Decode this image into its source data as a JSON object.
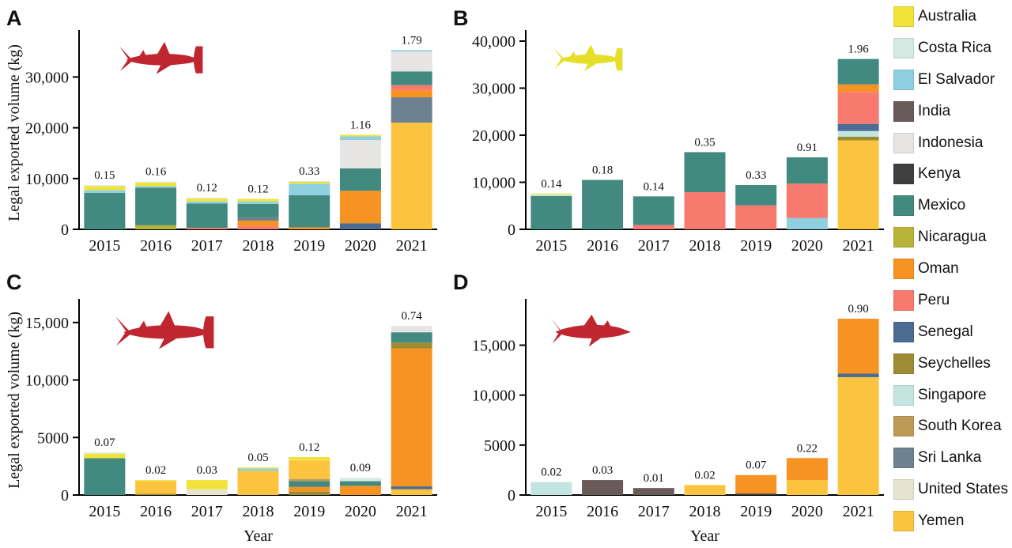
{
  "figure": {
    "y_axis_label": "Legal exported volume (kg)",
    "x_axis_label": "Year",
    "background": "#ffffff"
  },
  "colors": {
    "Australia": "#f2e33b",
    "Costa Rica": "#d6eae3",
    "El Salvador": "#8fd0e0",
    "India": "#6a5b5b",
    "Indonesia": "#e6e5e3",
    "Kenya": "#3f3f3f",
    "Mexico": "#42897f",
    "Nicaragua": "#b8b33a",
    "Oman": "#f69322",
    "Peru": "#f8796e",
    "Senegal": "#4b6b92",
    "Seychelles": "#9d8c33",
    "Singapore": "#c3e5e1",
    "South Korea": "#bd9b57",
    "Sri Lanka": "#6e8191",
    "United States": "#e8e2d1",
    "Yemen": "#fcc43e"
  },
  "legend": [
    "Australia",
    "Costa Rica",
    "El Salvador",
    "India",
    "Indonesia",
    "Kenya",
    "Mexico",
    "Nicaragua",
    "Oman",
    "Peru",
    "Senegal",
    "Seychelles",
    "Singapore",
    "South Korea",
    "Sri Lanka",
    "United States",
    "Yemen"
  ],
  "sharks": {
    "red": "#c02630",
    "yellow": "#e5df2b"
  },
  "chart_data": [
    {
      "type": "bar",
      "stacked": true,
      "panel": "A",
      "shark": {
        "kind": "hammerhead",
        "color": "red"
      },
      "categories": [
        "2015",
        "2016",
        "2017",
        "2018",
        "2019",
        "2020",
        "2021"
      ],
      "bar_labels": [
        "0.15",
        "0.16",
        "0.12",
        "0.12",
        "0.33",
        "1.16",
        "1.79"
      ],
      "ylim": [
        0,
        38000
      ],
      "yticks": [
        0,
        10000,
        20000,
        30000
      ],
      "ytick_labels": [
        "0",
        "10,000",
        "20,000",
        "30,000"
      ],
      "show_ylabel": true,
      "show_xlabel": false,
      "bars": [
        {
          "year": "2015",
          "total_label": "0.15",
          "segments": [
            {
              "country": "Mexico",
              "kg": 7200
            },
            {
              "country": "El Salvador",
              "kg": 500
            },
            {
              "country": "Australia",
              "kg": 800
            },
            {
              "country": "Costa Rica",
              "kg": 200
            }
          ]
        },
        {
          "year": "2016",
          "total_label": "0.16",
          "segments": [
            {
              "country": "Nicaragua",
              "kg": 800
            },
            {
              "country": "Mexico",
              "kg": 7400
            },
            {
              "country": "El Salvador",
              "kg": 300
            },
            {
              "country": "Australia",
              "kg": 700
            },
            {
              "country": "Costa Rica",
              "kg": 200
            }
          ]
        },
        {
          "year": "2017",
          "total_label": "0.12",
          "segments": [
            {
              "country": "Peru",
              "kg": 300
            },
            {
              "country": "Mexico",
              "kg": 4800
            },
            {
              "country": "El Salvador",
              "kg": 400
            },
            {
              "country": "Australia",
              "kg": 600
            },
            {
              "country": "Costa Rica",
              "kg": 100
            }
          ]
        },
        {
          "year": "2018",
          "total_label": "0.12",
          "segments": [
            {
              "country": "Peru",
              "kg": 600
            },
            {
              "country": "Oman",
              "kg": 1100
            },
            {
              "country": "Sri Lanka",
              "kg": 700
            },
            {
              "country": "Mexico",
              "kg": 2600
            },
            {
              "country": "El Salvador",
              "kg": 500
            },
            {
              "country": "Australia",
              "kg": 500
            }
          ]
        },
        {
          "year": "2019",
          "total_label": "0.33",
          "segments": [
            {
              "country": "Oman",
              "kg": 400
            },
            {
              "country": "Mexico",
              "kg": 6300
            },
            {
              "country": "El Salvador",
              "kg": 2300
            },
            {
              "country": "Australia",
              "kg": 400
            },
            {
              "country": "Costa Rica",
              "kg": 100
            }
          ]
        },
        {
          "year": "2020",
          "total_label": "1.16",
          "segments": [
            {
              "country": "Senegal",
              "kg": 1200
            },
            {
              "country": "Oman",
              "kg": 6400
            },
            {
              "country": "Mexico",
              "kg": 4400
            },
            {
              "country": "Indonesia",
              "kg": 5600
            },
            {
              "country": "El Salvador",
              "kg": 700
            },
            {
              "country": "Australia",
              "kg": 300
            }
          ]
        },
        {
          "year": "2021",
          "total_label": "1.79",
          "segments": [
            {
              "country": "Yemen",
              "kg": 21000
            },
            {
              "country": "Sri Lanka",
              "kg": 5000
            },
            {
              "country": "Oman",
              "kg": 1400
            },
            {
              "country": "Peru",
              "kg": 1000
            },
            {
              "country": "Mexico",
              "kg": 2700
            },
            {
              "country": "Indonesia",
              "kg": 3900
            },
            {
              "country": "El Salvador",
              "kg": 300
            }
          ]
        }
      ]
    },
    {
      "type": "bar",
      "stacked": true,
      "panel": "B",
      "shark": {
        "kind": "hammerhead",
        "color": "yellow"
      },
      "categories": [
        "2015",
        "2016",
        "2017",
        "2018",
        "2019",
        "2020",
        "2021"
      ],
      "bar_labels": [
        "0.14",
        "0.18",
        "0.14",
        "0.35",
        "0.33",
        "0.91",
        "1.96"
      ],
      "ylim": [
        0,
        41000
      ],
      "yticks": [
        0,
        10000,
        20000,
        30000,
        40000
      ],
      "ytick_labels": [
        "0",
        "10,000",
        "20,000",
        "30,000",
        "40,000"
      ],
      "show_ylabel": false,
      "show_xlabel": false,
      "bars": [
        {
          "year": "2015",
          "total_label": "0.14",
          "segments": [
            {
              "country": "Mexico",
              "kg": 7100
            },
            {
              "country": "Costa Rica",
              "kg": 300
            },
            {
              "country": "Australia",
              "kg": 200
            }
          ]
        },
        {
          "year": "2016",
          "total_label": "0.18",
          "segments": [
            {
              "country": "Mexico",
              "kg": 10500
            }
          ]
        },
        {
          "year": "2017",
          "total_label": "0.14",
          "segments": [
            {
              "country": "Peru",
              "kg": 900
            },
            {
              "country": "Mexico",
              "kg": 6100
            }
          ]
        },
        {
          "year": "2018",
          "total_label": "0.35",
          "segments": [
            {
              "country": "Peru",
              "kg": 7900
            },
            {
              "country": "Mexico",
              "kg": 8500
            }
          ]
        },
        {
          "year": "2019",
          "total_label": "0.33",
          "segments": [
            {
              "country": "Peru",
              "kg": 5100
            },
            {
              "country": "Mexico",
              "kg": 4300
            }
          ]
        },
        {
          "year": "2020",
          "total_label": "0.91",
          "segments": [
            {
              "country": "El Salvador",
              "kg": 2400
            },
            {
              "country": "Peru",
              "kg": 7300
            },
            {
              "country": "Mexico",
              "kg": 5600
            }
          ]
        },
        {
          "year": "2021",
          "total_label": "1.96",
          "segments": [
            {
              "country": "Yemen",
              "kg": 18900
            },
            {
              "country": "Seychelles",
              "kg": 800
            },
            {
              "country": "Singapore",
              "kg": 1200
            },
            {
              "country": "Senegal",
              "kg": 1500
            },
            {
              "country": "Peru",
              "kg": 6800
            },
            {
              "country": "Oman",
              "kg": 1600
            },
            {
              "country": "Mexico",
              "kg": 5400
            }
          ]
        }
      ]
    },
    {
      "type": "bar",
      "stacked": true,
      "panel": "C",
      "shark": {
        "kind": "hammerhead",
        "color": "red"
      },
      "categories": [
        "2015",
        "2016",
        "2017",
        "2018",
        "2019",
        "2020",
        "2021"
      ],
      "bar_labels": [
        "0.07",
        "0.02",
        "0.03",
        "0.05",
        "0.12",
        "0.09",
        "0.74"
      ],
      "ylim": [
        0,
        16500
      ],
      "yticks": [
        0,
        5000,
        10000,
        15000
      ],
      "ytick_labels": [
        "0",
        "5000",
        "10,000",
        "15,000"
      ],
      "show_ylabel": true,
      "show_xlabel": true,
      "bars": [
        {
          "year": "2015",
          "total_label": "0.07",
          "segments": [
            {
              "country": "Mexico",
              "kg": 3200
            },
            {
              "country": "Australia",
              "kg": 400
            },
            {
              "country": "Costa Rica",
              "kg": 100
            }
          ]
        },
        {
          "year": "2016",
          "total_label": "0.02",
          "segments": [
            {
              "country": "Seychelles",
              "kg": 100
            },
            {
              "country": "Yemen",
              "kg": 1100
            },
            {
              "country": "Australia",
              "kg": 100
            }
          ]
        },
        {
          "year": "2017",
          "total_label": "0.03",
          "segments": [
            {
              "country": "United States",
              "kg": 500
            },
            {
              "country": "Australia",
              "kg": 800
            }
          ]
        },
        {
          "year": "2018",
          "total_label": "0.05",
          "segments": [
            {
              "country": "Yemen",
              "kg": 2100
            },
            {
              "country": "El Salvador",
              "kg": 200
            },
            {
              "country": "Australia",
              "kg": 100
            }
          ]
        },
        {
          "year": "2019",
          "total_label": "0.12",
          "segments": [
            {
              "country": "Seychelles",
              "kg": 300
            },
            {
              "country": "Oman",
              "kg": 400
            },
            {
              "country": "Mexico",
              "kg": 500
            },
            {
              "country": "South Korea",
              "kg": 200
            },
            {
              "country": "Yemen",
              "kg": 1600
            },
            {
              "country": "Australia",
              "kg": 300
            }
          ]
        },
        {
          "year": "2020",
          "total_label": "0.09",
          "segments": [
            {
              "country": "Oman",
              "kg": 800
            },
            {
              "country": "Mexico",
              "kg": 400
            },
            {
              "country": "Costa Rica",
              "kg": 300
            }
          ]
        },
        {
          "year": "2021",
          "total_label": "0.74",
          "segments": [
            {
              "country": "Yemen",
              "kg": 500
            },
            {
              "country": "Senegal",
              "kg": 250
            },
            {
              "country": "Oman",
              "kg": 12000
            },
            {
              "country": "Seychelles",
              "kg": 500
            },
            {
              "country": "Mexico",
              "kg": 900
            },
            {
              "country": "Indonesia",
              "kg": 550
            }
          ]
        }
      ]
    },
    {
      "type": "bar",
      "stacked": true,
      "panel": "D",
      "shark": {
        "kind": "shark",
        "color": "red"
      },
      "categories": [
        "2015",
        "2016",
        "2017",
        "2018",
        "2019",
        "2020",
        "2021"
      ],
      "bar_labels": [
        "0.02",
        "0.03",
        "0.01",
        "0.02",
        "0.07",
        "0.22",
        "0.90"
      ],
      "ylim": [
        0,
        19000
      ],
      "yticks": [
        0,
        5000,
        10000,
        15000
      ],
      "ytick_labels": [
        "0",
        "5000",
        "10,000",
        "15,000"
      ],
      "show_ylabel": false,
      "show_xlabel": true,
      "bars": [
        {
          "year": "2015",
          "total_label": "0.02",
          "segments": [
            {
              "country": "Singapore",
              "kg": 1300
            }
          ]
        },
        {
          "year": "2016",
          "total_label": "0.03",
          "segments": [
            {
              "country": "India",
              "kg": 1500
            }
          ]
        },
        {
          "year": "2017",
          "total_label": "0.01",
          "segments": [
            {
              "country": "India",
              "kg": 700
            }
          ]
        },
        {
          "year": "2018",
          "total_label": "0.02",
          "segments": [
            {
              "country": "Yemen",
              "kg": 1000
            }
          ]
        },
        {
          "year": "2019",
          "total_label": "0.07",
          "segments": [
            {
              "country": "Kenya",
              "kg": 150
            },
            {
              "country": "Oman",
              "kg": 1850
            }
          ]
        },
        {
          "year": "2020",
          "total_label": "0.22",
          "segments": [
            {
              "country": "Yemen",
              "kg": 1500
            },
            {
              "country": "Oman",
              "kg": 2200
            }
          ]
        },
        {
          "year": "2021",
          "total_label": "0.90",
          "segments": [
            {
              "country": "Yemen",
              "kg": 11800
            },
            {
              "country": "Senegal",
              "kg": 350
            },
            {
              "country": "Oman",
              "kg": 5500
            }
          ]
        }
      ]
    }
  ]
}
